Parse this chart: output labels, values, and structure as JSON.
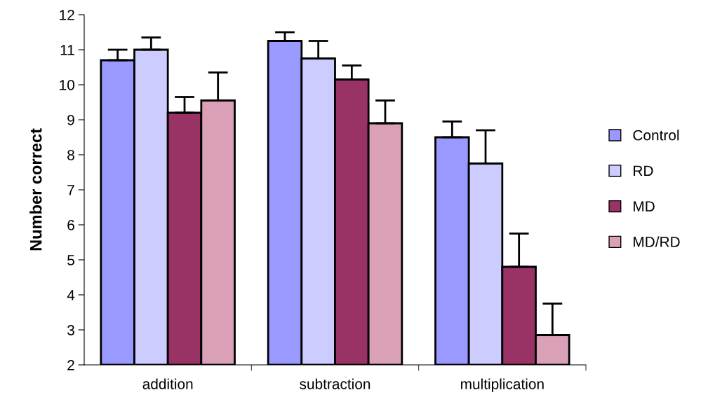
{
  "chart_data": {
    "type": "bar",
    "ylabel": "Number correct",
    "categories": [
      "addition",
      "subtraction",
      "multiplication"
    ],
    "series": [
      {
        "name": "Control",
        "color": "#9999ff",
        "values": [
          10.7,
          11.25,
          8.5
        ],
        "errors": [
          [
            10.7,
            11.0
          ],
          [
            11.25,
            11.5
          ],
          [
            8.5,
            8.95
          ]
        ]
      },
      {
        "name": "RD",
        "color": "#ccccff",
        "values": [
          11.0,
          10.75,
          7.75
        ],
        "errors": [
          [
            11.0,
            11.35
          ],
          [
            10.75,
            11.25
          ],
          [
            7.75,
            8.7
          ]
        ]
      },
      {
        "name": "MD",
        "color": "#993366",
        "values": [
          9.2,
          10.15,
          4.8
        ],
        "errors": [
          [
            9.2,
            9.65
          ],
          [
            10.15,
            10.55
          ],
          [
            4.8,
            5.75
          ]
        ]
      },
      {
        "name": "MD/RD",
        "color": "#d9a0b8",
        "values": [
          9.55,
          8.9,
          2.85
        ],
        "errors": [
          [
            9.55,
            10.35
          ],
          [
            8.9,
            9.55
          ],
          [
            2.85,
            3.75
          ]
        ]
      }
    ],
    "ylim": [
      2,
      12
    ],
    "yticks": [
      2,
      3,
      4,
      5,
      6,
      7,
      8,
      9,
      10,
      11,
      12
    ],
    "grid": false,
    "legend": "right"
  }
}
